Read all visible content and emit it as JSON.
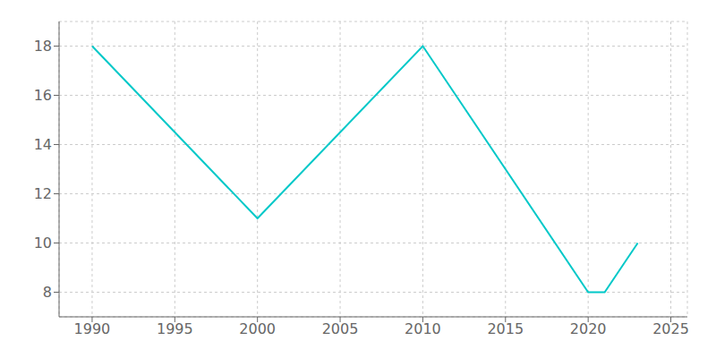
{
  "chart_data": {
    "type": "line",
    "x": [
      1990,
      2000,
      2010,
      2020,
      2021,
      2022,
      2023
    ],
    "values": [
      18,
      11,
      18,
      8,
      8,
      9,
      10
    ],
    "color": "#00c8c8",
    "xlim": [
      1988,
      2026
    ],
    "ylim": [
      7,
      19
    ],
    "xticks": [
      1990,
      1995,
      2000,
      2005,
      2010,
      2015,
      2020,
      2025
    ],
    "yticks": [
      8,
      10,
      12,
      14,
      16,
      18
    ],
    "grid": true
  }
}
